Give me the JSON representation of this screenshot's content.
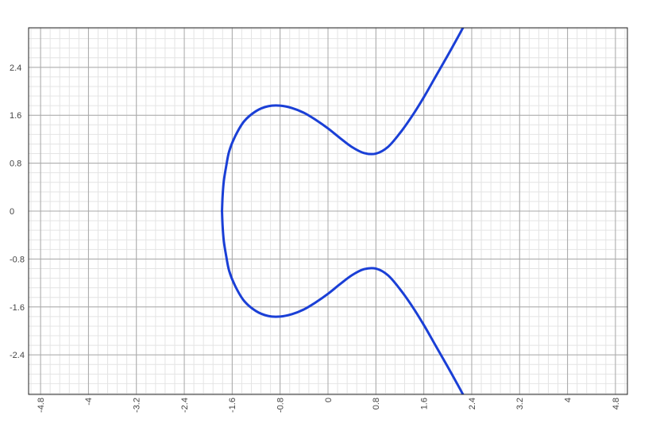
{
  "chart_data": {
    "type": "line",
    "title": "",
    "xlabel": "",
    "ylabel": "",
    "xlim": [
      -5.0,
      5.0
    ],
    "ylim": [
      -3.06,
      3.06
    ],
    "grid": true,
    "x_ticks": [
      -4.8,
      -4,
      -3.2,
      -2.4,
      -1.6,
      -0.8,
      0,
      0.8,
      1.6,
      2.4,
      3.2,
      4,
      4.8
    ],
    "x_tick_labels": [
      "-4.8",
      "-4",
      "-3.2",
      "-2.4",
      "-1.6",
      "-0.8",
      "0",
      "0.8",
      "1.6",
      "2.4",
      "3.2",
      "4",
      "4.8"
    ],
    "y_ticks": [
      2.4,
      1.6,
      0.8,
      0,
      -0.8,
      -1.6,
      -2.4
    ],
    "y_tick_labels": [
      "2.4",
      "1.6",
      "0.8",
      "0",
      "-0.8",
      "-1.6",
      "-2.4"
    ],
    "series": [
      {
        "color": "#1a3fd6",
        "x": [
          -1.77,
          -1.76,
          -1.74,
          -1.7,
          -1.65,
          -1.55,
          -1.4,
          -1.2,
          -1.0,
          -0.8,
          -0.6,
          -0.4,
          -0.2,
          0.0,
          0.2,
          0.4,
          0.6,
          0.8,
          1.0,
          1.2,
          1.4,
          1.6,
          1.8,
          2.0,
          2.2,
          2.3
        ],
        "y": [
          0.0,
          0.25,
          0.5,
          0.75,
          1.0,
          1.25,
          1.5,
          1.67,
          1.75,
          1.76,
          1.72,
          1.64,
          1.52,
          1.38,
          1.22,
          1.07,
          0.97,
          0.96,
          1.07,
          1.3,
          1.58,
          1.9,
          2.25,
          2.6,
          2.96,
          3.15
        ]
      },
      {
        "color": "#1a3fd6",
        "x": [
          -1.77,
          -1.76,
          -1.74,
          -1.7,
          -1.65,
          -1.55,
          -1.4,
          -1.2,
          -1.0,
          -0.8,
          -0.6,
          -0.4,
          -0.2,
          0.0,
          0.2,
          0.4,
          0.6,
          0.8,
          1.0,
          1.2,
          1.4,
          1.6,
          1.8,
          2.0,
          2.2,
          2.3
        ],
        "y": [
          0.0,
          -0.25,
          -0.5,
          -0.75,
          -1.0,
          -1.25,
          -1.5,
          -1.67,
          -1.75,
          -1.76,
          -1.72,
          -1.64,
          -1.52,
          -1.38,
          -1.22,
          -1.07,
          -0.97,
          -0.96,
          -1.07,
          -1.3,
          -1.58,
          -1.9,
          -2.25,
          -2.6,
          -2.96,
          -3.15
        ]
      }
    ]
  }
}
